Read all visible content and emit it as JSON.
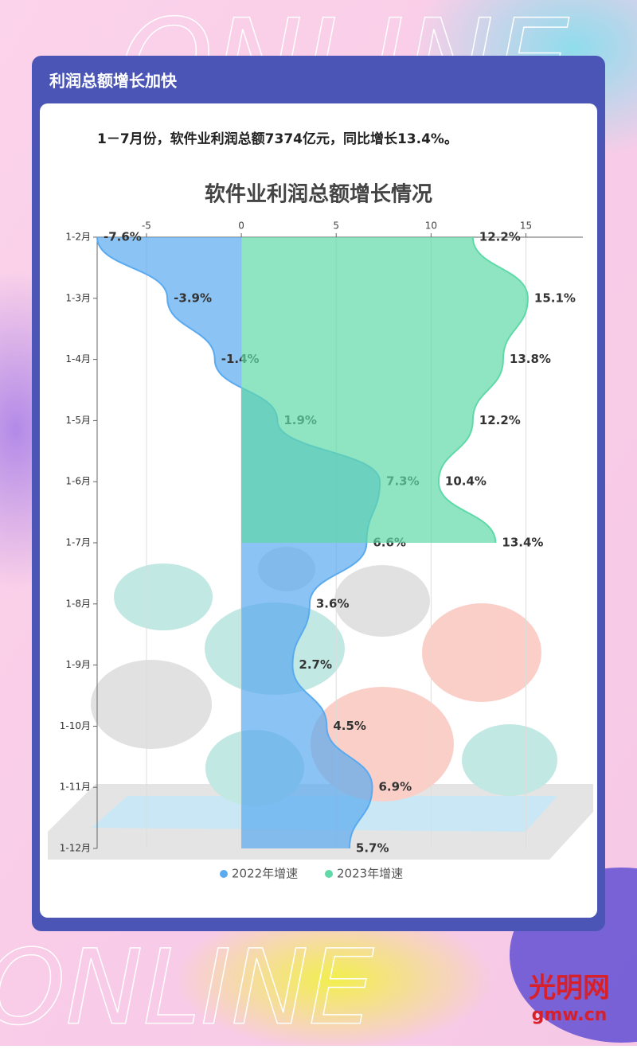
{
  "watermark": "ONLINE",
  "header": {
    "title": "利润总额增长加快",
    "subtitle": "1－7月份，软件业利润总额7374亿元，同比增长13.4%。"
  },
  "logo": {
    "name": "光明网",
    "domain": "gmw.cn"
  },
  "chart_data": {
    "type": "area",
    "orientation": "horizontal",
    "title": "软件业利润总额增长情况",
    "categories": [
      "1-2月",
      "1-3月",
      "1-4月",
      "1-5月",
      "1-6月",
      "1-7月",
      "1-8月",
      "1-9月",
      "1-10月",
      "1-11月",
      "1-12月"
    ],
    "series": [
      {
        "name": "2022年增速",
        "color": "#5aaaf0",
        "values": [
          -7.6,
          -3.9,
          -1.4,
          1.9,
          7.3,
          6.6,
          3.6,
          2.7,
          4.5,
          6.9,
          5.7
        ],
        "value_labels": [
          "-7.6%",
          "-3.9%",
          "-1.4%",
          "1.9%",
          "7.3%",
          "6.6%",
          "3.6%",
          "2.7%",
          "4.5%",
          "6.9%",
          "5.7%"
        ]
      },
      {
        "name": "2023年增速",
        "color": "#5fd9a8",
        "values": [
          12.2,
          15.1,
          13.8,
          12.2,
          10.4,
          13.4,
          null,
          null,
          null,
          null,
          null
        ],
        "value_labels": [
          "12.2%",
          "15.1%",
          "13.8%",
          "12.2%",
          "10.4%",
          "13.4%",
          null,
          null,
          null,
          null,
          null
        ]
      }
    ],
    "xlim": [
      -7.6,
      18
    ],
    "xticks": [
      -5,
      0,
      5,
      10,
      15
    ],
    "grid": true,
    "legend": "bottom"
  }
}
